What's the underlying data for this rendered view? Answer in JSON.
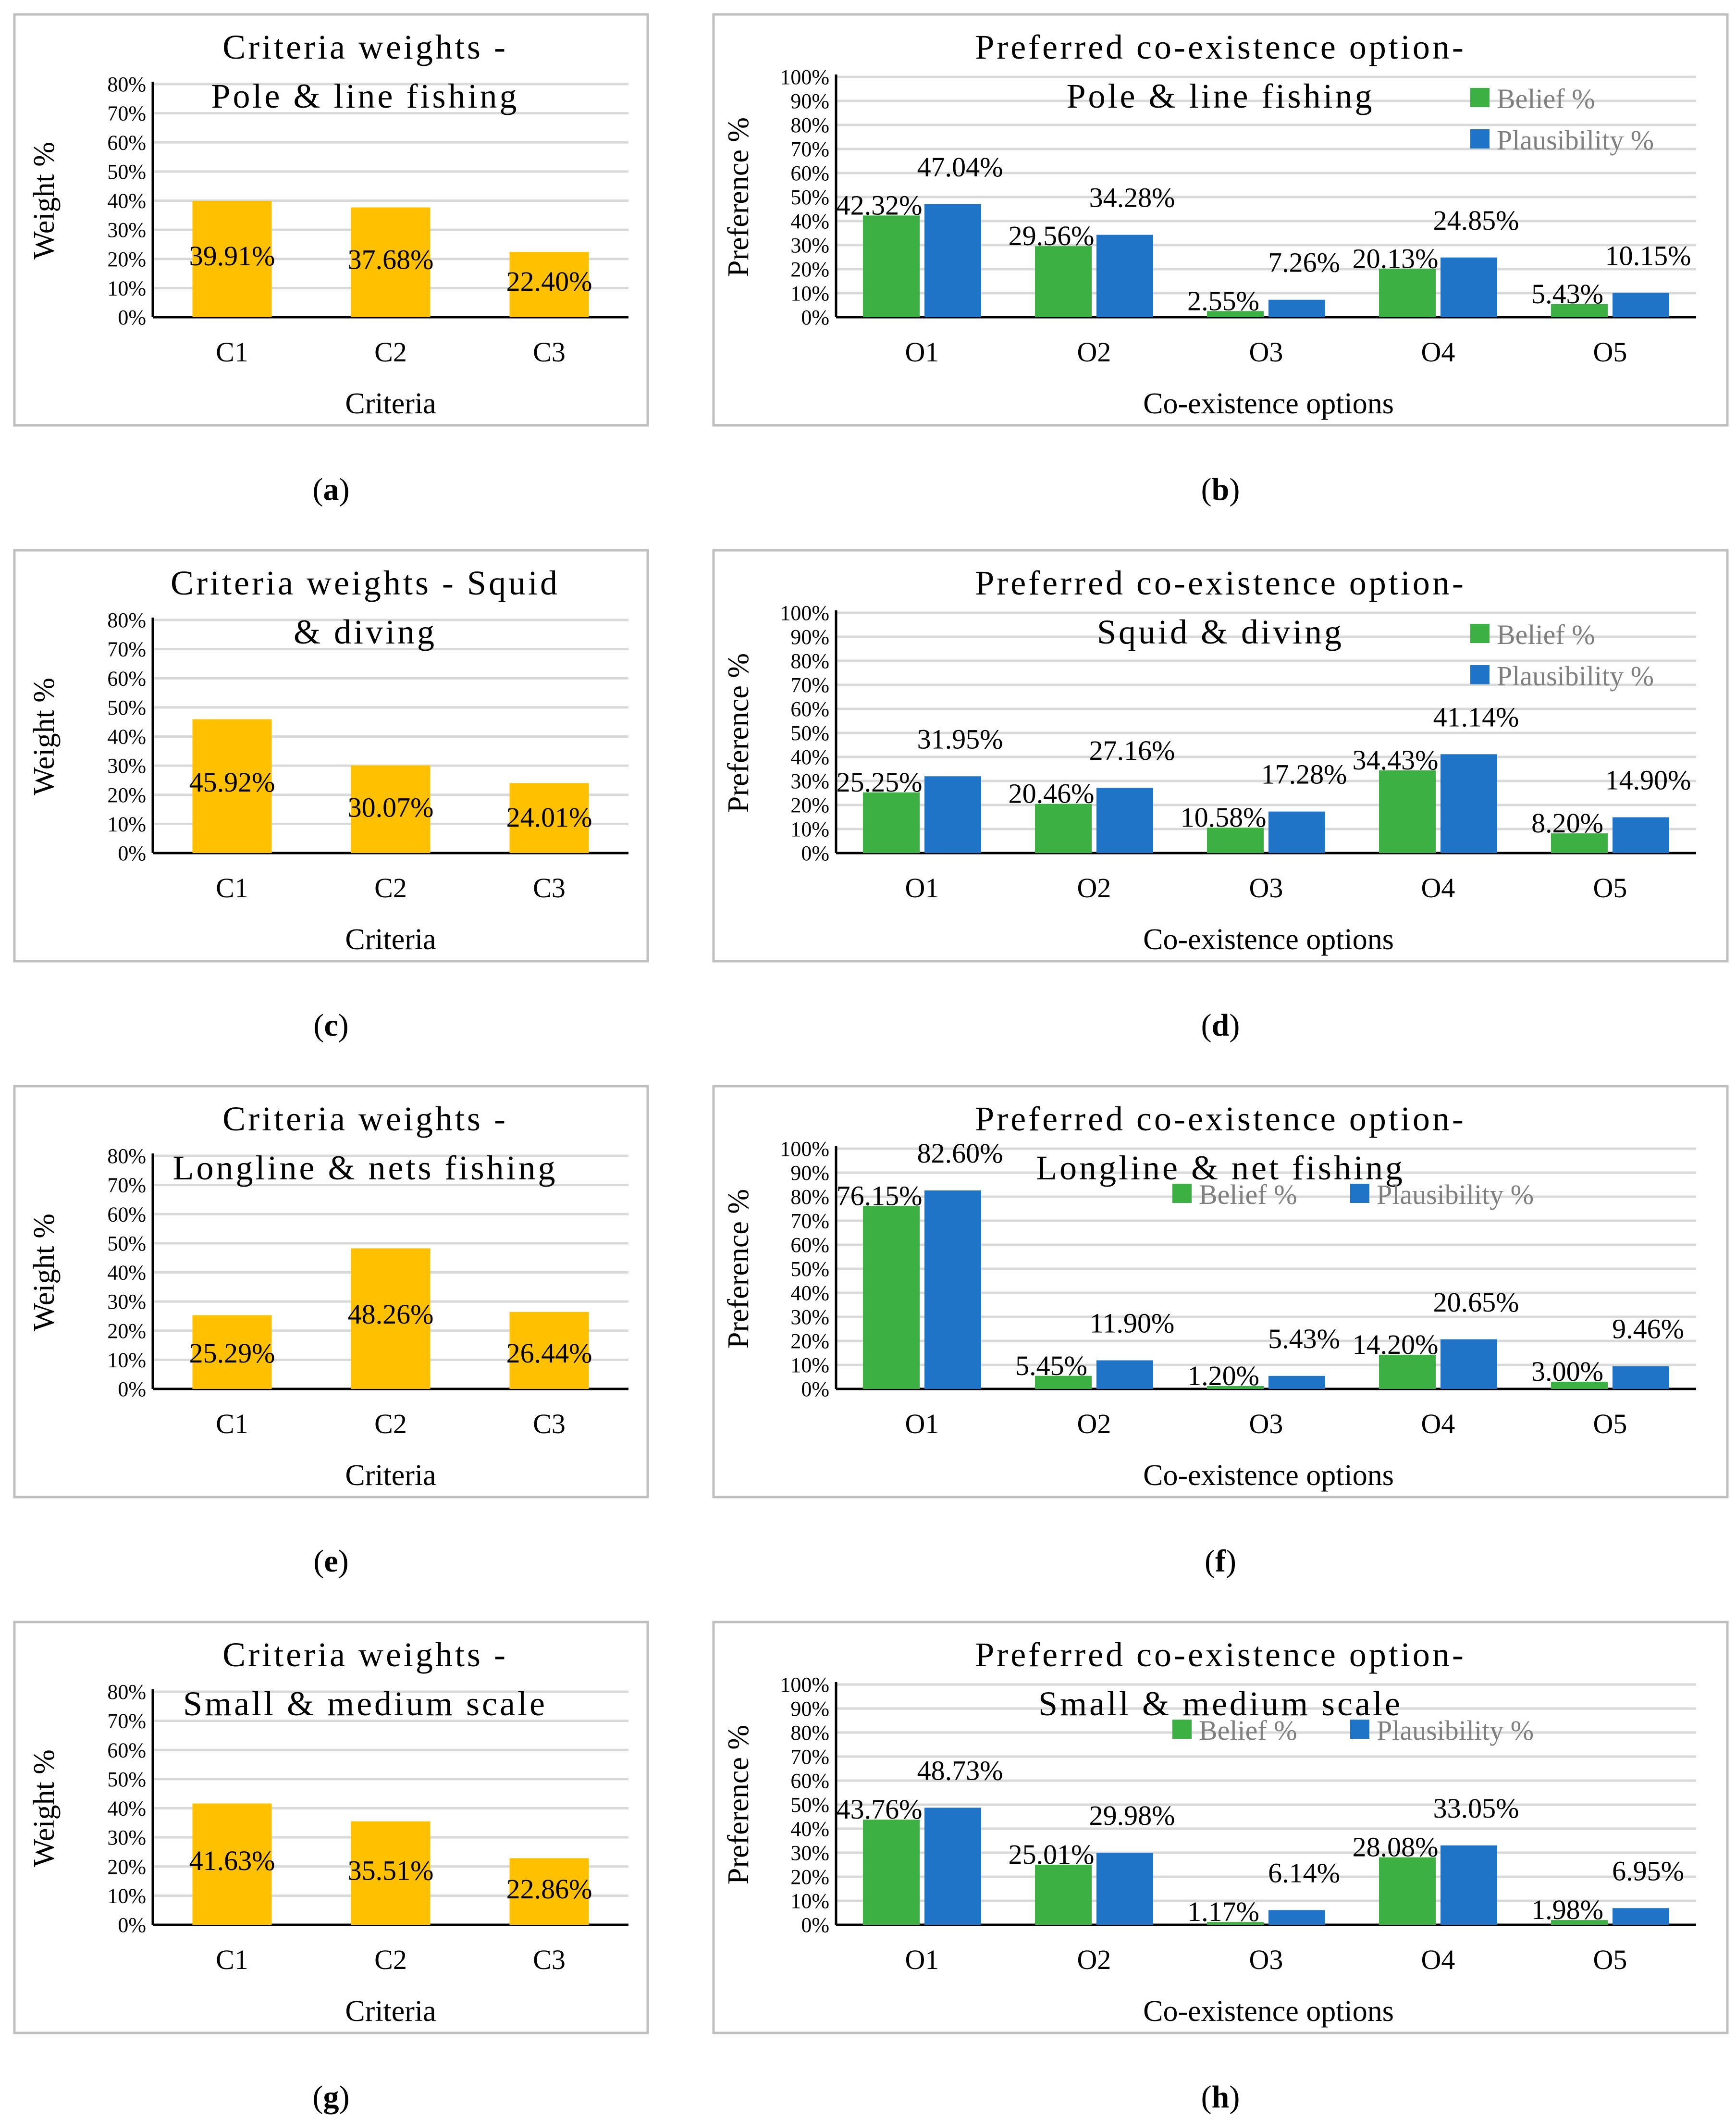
{
  "colors": {
    "weight_bar": "#FFC000",
    "belief": "#3CB043",
    "plausibility": "#1F74C8",
    "legend_text": "#7F7F7F",
    "grid": "#D9D9D9",
    "frame": "#BFBFBF",
    "text": "#000000"
  },
  "chart_data": [
    {
      "id": "a",
      "type": "bar",
      "caption_label": "a",
      "title_lines": [
        "Criteria weights -",
        "Pole & line fishing"
      ],
      "xlabel": "Criteria",
      "ylabel": "Weight %",
      "ylim": [
        0,
        80
      ],
      "yticks": [
        "0%",
        "10%",
        "20%",
        "30%",
        "40%",
        "50%",
        "60%",
        "70%",
        "80%"
      ],
      "categories": [
        "C1",
        "C2",
        "C3"
      ],
      "series": [
        {
          "name": "Weight",
          "values": [
            39.91,
            37.68,
            22.4
          ],
          "labels": [
            "39.91%",
            "37.68%",
            "22.40%"
          ]
        }
      ]
    },
    {
      "id": "b",
      "type": "bar",
      "caption_label": "b",
      "title_lines": [
        "Preferred co-existence option-",
        "Pole & line fishing"
      ],
      "xlabel": "Co-existence options",
      "ylabel": "Preference %",
      "ylim": [
        0,
        100
      ],
      "yticks": [
        "0%",
        "10%",
        "20%",
        "30%",
        "40%",
        "50%",
        "60%",
        "70%",
        "80%",
        "90%",
        "100%"
      ],
      "categories": [
        "O1",
        "O2",
        "O3",
        "O4",
        "O5"
      ],
      "legend_position": "right-stacked",
      "series": [
        {
          "name": "Belief %",
          "values": [
            42.32,
            29.56,
            2.55,
            20.13,
            5.43
          ],
          "labels": [
            "42.32%",
            "29.56%",
            "2.55%",
            "20.13%",
            "5.43%"
          ]
        },
        {
          "name": "Plausibility %",
          "values": [
            47.04,
            34.28,
            7.26,
            24.85,
            10.15
          ],
          "labels": [
            "47.04%",
            "34.28%",
            "7.26%",
            "24.85%",
            "10.15%"
          ]
        }
      ]
    },
    {
      "id": "c",
      "type": "bar",
      "caption_label": "c",
      "title_lines": [
        "Criteria weights - Squid",
        "& diving"
      ],
      "xlabel": "Criteria",
      "ylabel": "Weight %",
      "ylim": [
        0,
        80
      ],
      "yticks": [
        "0%",
        "10%",
        "20%",
        "30%",
        "40%",
        "50%",
        "60%",
        "70%",
        "80%"
      ],
      "categories": [
        "C1",
        "C2",
        "C3"
      ],
      "series": [
        {
          "name": "Weight",
          "values": [
            45.92,
            30.07,
            24.01
          ],
          "labels": [
            "45.92%",
            "30.07%",
            "24.01%"
          ]
        }
      ]
    },
    {
      "id": "d",
      "type": "bar",
      "caption_label": "d",
      "title_lines": [
        "Preferred co-existence option-",
        "Squid & diving"
      ],
      "xlabel": "Co-existence options",
      "ylabel": "Preference %",
      "ylim": [
        0,
        100
      ],
      "yticks": [
        "0%",
        "10%",
        "20%",
        "30%",
        "40%",
        "50%",
        "60%",
        "70%",
        "80%",
        "90%",
        "100%"
      ],
      "categories": [
        "O1",
        "O2",
        "O3",
        "O4",
        "O5"
      ],
      "legend_position": "right-stacked",
      "series": [
        {
          "name": "Belief %",
          "values": [
            25.25,
            20.46,
            10.58,
            34.43,
            8.2
          ],
          "labels": [
            "25.25%",
            "20.46%",
            "10.58%",
            "34.43%",
            "8.20%"
          ]
        },
        {
          "name": "Plausibility %",
          "values": [
            31.95,
            27.16,
            17.28,
            41.14,
            14.9
          ],
          "labels": [
            "31.95%",
            "27.16%",
            "17.28%",
            "41.14%",
            "14.90%"
          ]
        }
      ]
    },
    {
      "id": "e",
      "type": "bar",
      "caption_label": "e",
      "title_lines": [
        "Criteria weights -",
        "Longline & nets fishing"
      ],
      "xlabel": "Criteria",
      "ylabel": "Weight %",
      "ylim": [
        0,
        80
      ],
      "yticks": [
        "0%",
        "10%",
        "20%",
        "30%",
        "40%",
        "50%",
        "60%",
        "70%",
        "80%"
      ],
      "categories": [
        "C1",
        "C2",
        "C3"
      ],
      "series": [
        {
          "name": "Weight",
          "values": [
            25.29,
            48.26,
            26.44
          ],
          "labels": [
            "25.29%",
            "48.26%",
            "26.44%"
          ]
        }
      ]
    },
    {
      "id": "f",
      "type": "bar",
      "caption_label": "f",
      "title_lines": [
        "Preferred co-existence option-",
        "Longline & net fishing"
      ],
      "xlabel": "Co-existence options",
      "ylabel": "Preference %",
      "ylim": [
        0,
        100
      ],
      "yticks": [
        "0%",
        "10%",
        "20%",
        "30%",
        "40%",
        "50%",
        "60%",
        "70%",
        "80%",
        "90%",
        "100%"
      ],
      "categories": [
        "O1",
        "O2",
        "O3",
        "O4",
        "O5"
      ],
      "legend_position": "center-inline",
      "series": [
        {
          "name": "Belief %",
          "values": [
            76.15,
            5.45,
            1.2,
            14.2,
            3.0
          ],
          "labels": [
            "76.15%",
            "5.45%",
            "1.20%",
            "14.20%",
            "3.00%"
          ]
        },
        {
          "name": "Plausibility %",
          "values": [
            82.6,
            11.9,
            5.43,
            20.65,
            9.46
          ],
          "labels": [
            "82.60%",
            "11.90%",
            "5.43%",
            "20.65%",
            "9.46%"
          ]
        }
      ]
    },
    {
      "id": "g",
      "type": "bar",
      "caption_label": "g",
      "title_lines": [
        "Criteria weights -",
        "Small & medium scale"
      ],
      "xlabel": "Criteria",
      "ylabel": "Weight %",
      "ylim": [
        0,
        80
      ],
      "yticks": [
        "0%",
        "10%",
        "20%",
        "30%",
        "40%",
        "50%",
        "60%",
        "70%",
        "80%"
      ],
      "categories": [
        "C1",
        "C2",
        "C3"
      ],
      "series": [
        {
          "name": "Weight",
          "values": [
            41.63,
            35.51,
            22.86
          ],
          "labels": [
            "41.63%",
            "35.51%",
            "22.86%"
          ]
        }
      ]
    },
    {
      "id": "h",
      "type": "bar",
      "caption_label": "h",
      "title_lines": [
        "Preferred co-existence option-",
        "Small & medium scale"
      ],
      "xlabel": "Co-existence options",
      "ylabel": "Preference %",
      "ylim": [
        0,
        100
      ],
      "yticks": [
        "0%",
        "10%",
        "20%",
        "30%",
        "40%",
        "50%",
        "60%",
        "70%",
        "80%",
        "90%",
        "100%"
      ],
      "categories": [
        "O1",
        "O2",
        "O3",
        "O4",
        "O5"
      ],
      "legend_position": "center-inline",
      "series": [
        {
          "name": "Belief %",
          "values": [
            43.76,
            25.01,
            1.17,
            28.08,
            1.98
          ],
          "labels": [
            "43.76%",
            "25.01%",
            "1.17%",
            "28.08%",
            "1.98%"
          ]
        },
        {
          "name": "Plausibility %",
          "values": [
            48.73,
            29.98,
            6.14,
            33.05,
            6.95
          ],
          "labels": [
            "48.73%",
            "29.98%",
            "6.14%",
            "33.05%",
            "6.95%"
          ]
        }
      ]
    }
  ]
}
